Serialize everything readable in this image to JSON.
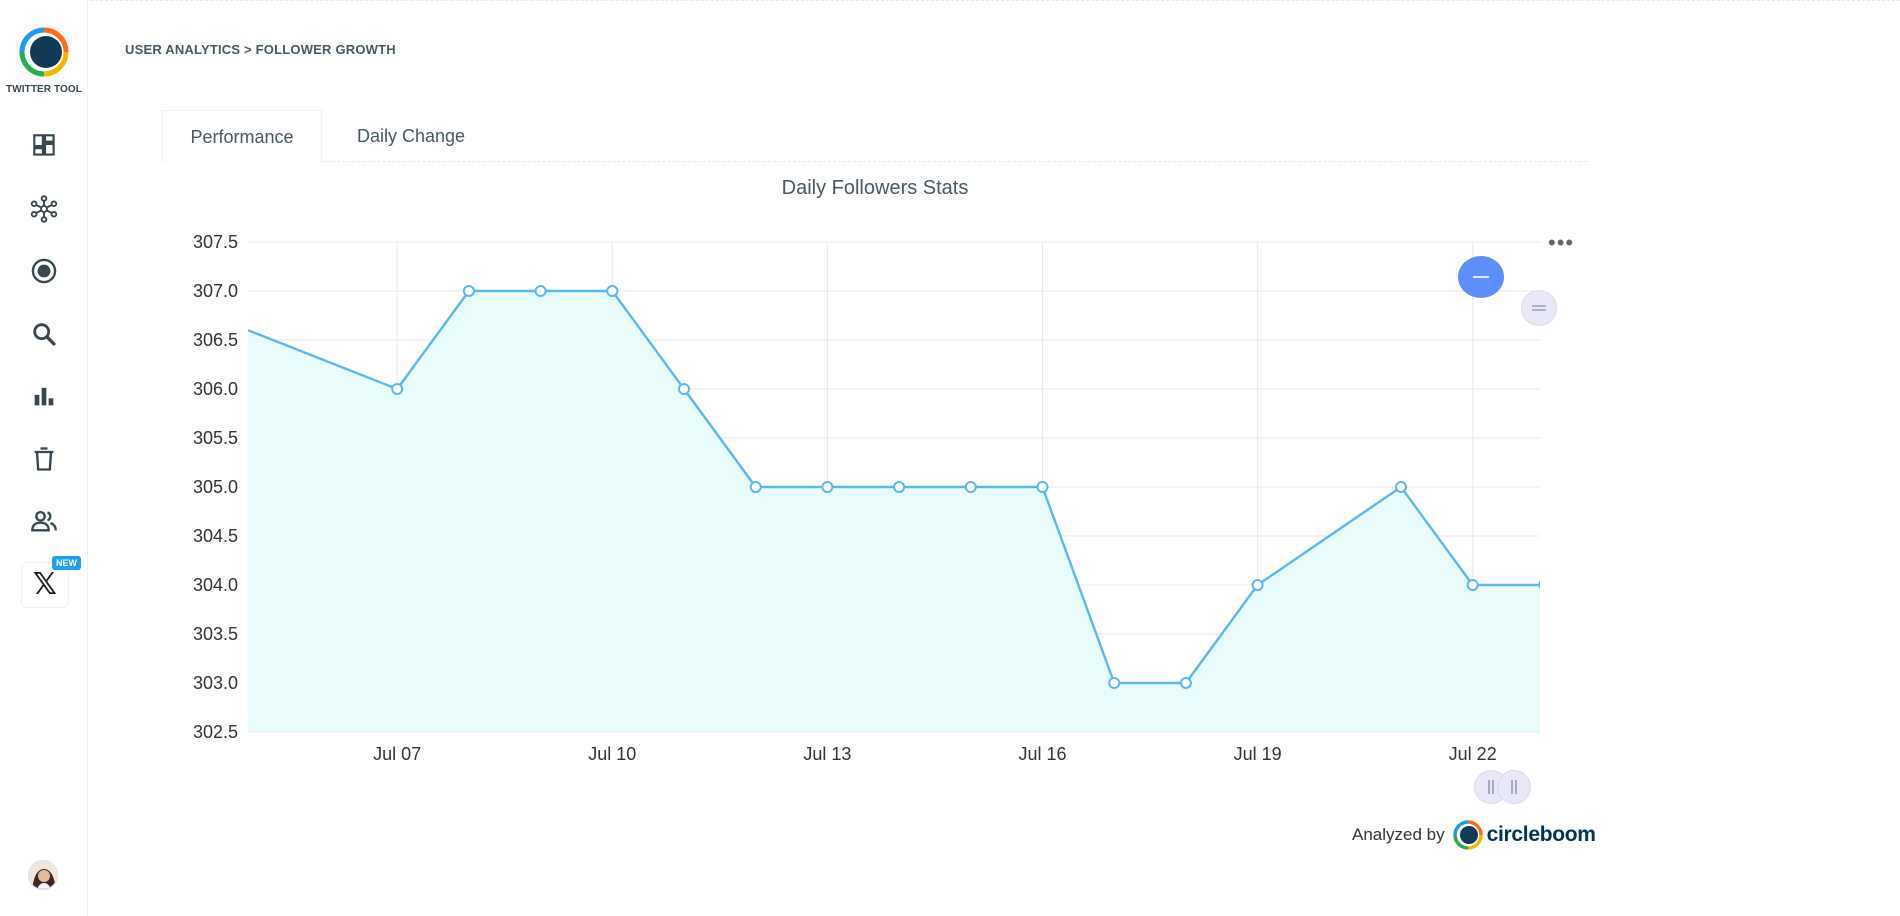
{
  "app": {
    "logo_text": "TWITTER TOOL",
    "breadcrumb": "USER ANALYTICS > FOLLOWER GROWTH"
  },
  "sidebar": {
    "items": [
      {
        "icon": "dashboard-icon"
      },
      {
        "icon": "network-icon"
      },
      {
        "icon": "target-icon"
      },
      {
        "icon": "search-icon"
      },
      {
        "icon": "bar-chart-icon"
      },
      {
        "icon": "trash-icon"
      },
      {
        "icon": "users-icon"
      },
      {
        "icon": "x-logo-icon",
        "badge": "NEW"
      }
    ]
  },
  "tabs": [
    {
      "label": "Performance",
      "active": true
    },
    {
      "label": "Daily Change",
      "active": false
    }
  ],
  "footer": {
    "analyzed_by": "Analyzed by",
    "brand": "circleboom"
  },
  "colors": {
    "line": "#5ab8f5",
    "area": "#e8fdfb",
    "zoom_button": "#5c8fff",
    "brand": "#003552",
    "badge": "#1da1f2"
  },
  "chart_data": {
    "type": "area",
    "title": "Daily Followers Stats",
    "xlabel": "",
    "ylabel": "",
    "ylim": [
      302.5,
      307.5
    ],
    "yticks": [
      "307.5",
      "307.0",
      "306.5",
      "306.0",
      "305.5",
      "305.0",
      "304.5",
      "304.0",
      "303.5",
      "303.0",
      "302.5"
    ],
    "xticks": [
      "Jul 07",
      "Jul 10",
      "Jul 13",
      "Jul 16",
      "Jul 19",
      "Jul 22"
    ],
    "grid": true,
    "series": [
      {
        "x": [
          "Jul 06",
          "Jul 07",
          "Jul 08",
          "Jul 09",
          "Jul 10",
          "Jul 11",
          "Jul 12",
          "Jul 13",
          "Jul 14",
          "Jul 15",
          "Jul 16",
          "Jul 17",
          "Jul 18",
          "Jul 19",
          "Jul 20",
          "Jul 21",
          "Jul 22",
          "Jul 23"
        ],
        "values": [
          306.6,
          306,
          307,
          307,
          307,
          306,
          305,
          305,
          305,
          305,
          305,
          303,
          303,
          304,
          304.5,
          305,
          304,
          304
        ]
      }
    ]
  }
}
